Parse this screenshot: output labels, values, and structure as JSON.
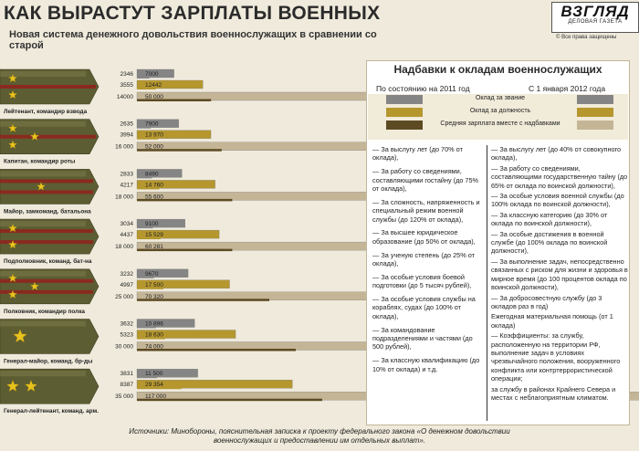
{
  "header": {
    "title": "КАК ВЫРАСТУТ ЗАРПЛАТЫ ВОЕННЫХ",
    "subtitle": "Новая система денежного довольствия военнослужащих в сравнении со старой",
    "logo_name": "ВЗГЛЯД",
    "logo_sub": "ДЕЛОВАЯ ГАЗЕТА",
    "rights": "© Все права защищены"
  },
  "colors": {
    "rank_pay": "#858585",
    "position_pay": "#b5972e",
    "total_new": "#c4b596",
    "total_old": "#5c4a23",
    "strap_top": "#787848",
    "strap_mid": "#5c5d33",
    "stripe": "#8a2a1f",
    "star": "#e8c21d"
  },
  "chart_data": {
    "type": "bar",
    "orientation": "horizontal",
    "categories": [
      "Лейтенант, командир взвода",
      "Капитан, командир роты",
      "Майор, замкоманд. батальона",
      "Подполковник, команд. бат-на",
      "Полковник, командир полка",
      "Генерал-майор, команд. бр-ды",
      "Генерал-лейтенант, команд. арм."
    ],
    "series": [
      {
        "name": "Оклад за звание",
        "values": [
          7000,
          7900,
          8490,
          9100,
          9670,
          10896,
          11500
        ],
        "old_values": [
          2346,
          2635,
          2833,
          3034,
          3232,
          3632,
          3831
        ],
        "labels": [
          "7000",
          "7900",
          "8490",
          "9100",
          "9670",
          "10 896",
          "11 500"
        ],
        "old_labels": [
          "2346",
          "2635",
          "2833",
          "3034",
          "3232",
          "3632",
          "3831"
        ]
      },
      {
        "name": "Оклад за должность",
        "values": [
          12442,
          13970,
          14760,
          15529,
          17500,
          18630,
          29354
        ],
        "old_values": [
          3555,
          3994,
          4217,
          4437,
          4997,
          5323,
          8387
        ],
        "labels": [
          "12442",
          "13 970",
          "14 760",
          "15 529",
          "17 500",
          "18 630",
          "29 354"
        ],
        "old_labels": [
          "3555",
          "3994",
          "4217",
          "4437",
          "4997",
          "5323",
          "8387"
        ]
      },
      {
        "name": "Средняя зарплата вместе с надбавками",
        "values": [
          50000,
          52000,
          55600,
          60281,
          70320,
          74000,
          117000
        ],
        "old_values": [
          14000,
          16000,
          18000,
          18000,
          25000,
          30000,
          35000
        ],
        "labels": [
          "50 000",
          "52 000",
          "55 600",
          "60 281",
          "70 320",
          "74 000",
          "117 000"
        ],
        "old_labels": [
          "14000",
          "16 000",
          "18 000",
          "18 000",
          "25 000",
          "30 000",
          "35 000"
        ]
      }
    ],
    "periods": [
      "По состоянию на 2011 год",
      "С 1 января 2012 года"
    ]
  },
  "panel": {
    "title": "Надбавки к окладам военнослужащих",
    "col_old": "По состоянию на 2011 год",
    "col_new": "С 1 января 2012 года",
    "legend": [
      "Оклад за звание",
      "Оклад за должность",
      "Средняя зарплата вместе с надбавками"
    ],
    "old_bonuses": [
      "— За выслугу лет (до 70% от оклада),",
      "— За работу со сведениями, составляющими гостайну (до 75% от оклада),",
      "— За сложность, напряженность и специальный режим военной службы (до 120% от оклада),",
      "— За высшее юридическое образование (до 50% от оклада),",
      "— За ученую степень (до 25% от оклада),",
      "— За особые условия боевой подготовки (до 5 тысяч рублей),",
      "— За особые условия службы на кораблях, судах (до 100% от оклада),",
      "— За командование подразделениями и частями (до 500 рублей),",
      "— За классную квалификацию (до 10% от оклада) и т.д."
    ],
    "new_bonuses": [
      "— За выслугу лет (до 40% от совокупного оклада),",
      "— За работу со сведениями, составляющими государственную тайну (до 65% от оклада по воинской должности),",
      "— За особые условия военной службы (до 100% оклада по воинской должности),",
      "— За классную категорию (до 30% от оклада по воинской должности),",
      "— За особые достижения в военной службе (до 100% оклада по воинской должности),",
      "— За выполнение задач, непосредственно связанных с риском для жизни и здоровья в мирное время (до 100 процентов оклада по воинской должности),",
      "— За добросовестную службу (до 3 окладов раз в год)",
      "Ежегодная материальная помощь (от 1 оклада)",
      "— Коэффициенты: за службу, расположенную на территории РФ, выполнение задач в условиях чрезвычайного положения, вооруженного конфликта или контртеррористической операции;",
      "за службу в районах Крайнего Севера и местах с неблагоприятным климатом."
    ]
  },
  "source": "Источники: Минобороны, пояснительная записка к проекту федерального закона «О денежном довольствии военнослужащих и предоставлении им отдельных выплат»."
}
